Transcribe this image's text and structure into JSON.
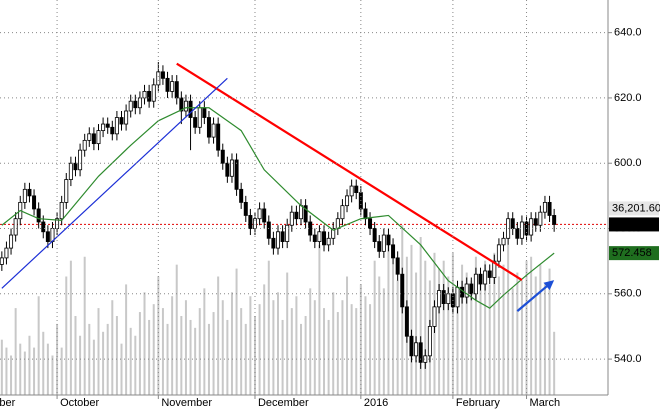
{
  "chart_data": {
    "type": "candlestick",
    "xlim": [
      -0.4,
      131.7
    ],
    "xticks": [
      {
        "value": -1.2,
        "label": "ber"
      },
      {
        "value": 12,
        "label": "October"
      },
      {
        "value": 34,
        "label": "November"
      },
      {
        "value": 55,
        "label": "December"
      },
      {
        "value": 78,
        "label": "2016"
      },
      {
        "value": 98,
        "label": "February"
      },
      {
        "value": 114,
        "label": "March"
      }
    ],
    "ylim": [
      529,
      650
    ],
    "yticks": [
      {
        "value": 540,
        "label": "540.0"
      },
      {
        "value": 560,
        "label": "560.0"
      },
      {
        "value": 580,
        "label": "580.0"
      },
      {
        "value": 600,
        "label": "600.0"
      },
      {
        "value": 620,
        "label": "620.0"
      },
      {
        "value": 640,
        "label": "640.0"
      }
    ],
    "grid": true,
    "up_color": "#ffffff",
    "down_color": "#000000",
    "candles": [
      [
        569,
        573,
        567,
        571
      ],
      [
        571,
        576,
        569,
        574
      ],
      [
        574,
        580,
        572,
        578
      ],
      [
        578,
        585,
        576,
        583
      ],
      [
        583,
        590,
        581,
        588
      ],
      [
        588,
        594,
        586,
        592
      ],
      [
        592,
        594,
        588,
        590
      ],
      [
        590,
        592,
        584,
        586
      ],
      [
        586,
        588,
        580,
        582
      ],
      [
        582,
        584,
        577,
        579
      ],
      [
        579,
        581,
        574,
        576
      ],
      [
        576,
        582,
        574,
        580
      ],
      [
        580,
        585,
        578,
        583
      ],
      [
        583,
        590,
        581,
        588
      ],
      [
        588,
        597,
        586,
        595
      ],
      [
        595,
        602,
        593,
        600
      ],
      [
        600,
        602,
        596,
        598
      ],
      [
        598,
        606,
        596,
        604
      ],
      [
        604,
        609,
        602,
        607
      ],
      [
        607,
        611,
        605,
        609
      ],
      [
        609,
        611,
        604,
        606
      ],
      [
        606,
        612,
        604,
        610
      ],
      [
        610,
        614,
        608,
        612
      ],
      [
        612,
        614,
        609,
        611
      ],
      [
        611,
        613,
        607,
        609
      ],
      [
        609,
        616,
        607,
        614
      ],
      [
        614,
        616,
        610,
        612
      ],
      [
        612,
        618,
        610,
        616
      ],
      [
        616,
        621,
        614,
        619
      ],
      [
        619,
        621,
        615,
        617
      ],
      [
        617,
        622,
        615,
        620
      ],
      [
        620,
        624,
        618,
        622
      ],
      [
        622,
        624,
        617,
        619
      ],
      [
        619,
        626,
        617,
        624
      ],
      [
        624,
        631,
        622,
        628
      ],
      [
        628,
        630,
        624,
        626
      ],
      [
        626,
        628,
        620,
        622
      ],
      [
        622,
        627,
        620,
        625
      ],
      [
        625,
        627,
        618,
        620
      ],
      [
        620,
        622,
        612,
        616
      ],
      [
        616,
        621,
        614,
        619
      ],
      [
        619,
        621,
        604,
        614
      ],
      [
        614,
        616,
        609,
        611
      ],
      [
        611,
        619,
        609,
        617
      ],
      [
        617,
        619,
        612,
        614
      ],
      [
        614,
        616,
        606,
        608
      ],
      [
        608,
        614,
        606,
        612
      ],
      [
        612,
        614,
        602,
        604
      ],
      [
        604,
        606,
        598,
        600
      ],
      [
        600,
        602,
        594,
        596
      ],
      [
        596,
        603,
        594,
        601
      ],
      [
        601,
        603,
        590,
        592
      ],
      [
        592,
        594,
        586,
        588
      ],
      [
        588,
        590,
        582,
        584
      ],
      [
        584,
        586,
        578,
        580
      ],
      [
        580,
        585,
        578,
        583
      ],
      [
        583,
        588,
        581,
        586
      ],
      [
        586,
        588,
        580,
        582
      ],
      [
        582,
        584,
        575,
        577
      ],
      [
        577,
        579,
        572,
        574
      ],
      [
        574,
        581,
        572,
        579
      ],
      [
        579,
        581,
        574,
        576
      ],
      [
        576,
        583,
        574,
        581
      ],
      [
        581,
        587,
        579,
        585
      ],
      [
        585,
        587,
        581,
        583
      ],
      [
        583,
        589,
        581,
        587
      ],
      [
        587,
        589,
        580,
        582
      ],
      [
        582,
        584,
        576,
        578
      ],
      [
        578,
        580,
        574,
        576
      ],
      [
        576,
        581,
        574,
        579
      ],
      [
        579,
        581,
        573,
        575
      ],
      [
        575,
        579,
        573,
        577
      ],
      [
        577,
        582,
        575,
        580
      ],
      [
        580,
        585,
        578,
        583
      ],
      [
        583,
        589,
        581,
        587
      ],
      [
        587,
        592,
        585,
        590
      ],
      [
        590,
        595,
        588,
        593
      ],
      [
        593,
        595,
        589,
        591
      ],
      [
        591,
        593,
        584,
        586
      ],
      [
        586,
        588,
        581,
        583
      ],
      [
        583,
        585,
        578,
        580
      ],
      [
        580,
        582,
        574,
        576
      ],
      [
        576,
        578,
        571,
        573
      ],
      [
        573,
        580,
        571,
        578
      ],
      [
        578,
        580,
        573,
        575
      ],
      [
        575,
        577,
        569,
        571
      ],
      [
        571,
        573,
        564,
        566
      ],
      [
        566,
        568,
        554,
        556
      ],
      [
        556,
        558,
        545,
        547
      ],
      [
        547,
        549,
        539,
        541
      ],
      [
        541,
        547,
        539,
        545
      ],
      [
        545,
        547,
        537,
        539
      ],
      [
        539,
        543,
        537,
        541
      ],
      [
        541,
        552,
        539,
        550
      ],
      [
        550,
        558,
        548,
        556
      ],
      [
        556,
        563,
        554,
        561
      ],
      [
        561,
        563,
        555,
        557
      ],
      [
        557,
        562,
        555,
        560
      ],
      [
        560,
        562,
        554,
        556
      ],
      [
        556,
        564,
        554,
        562
      ],
      [
        562,
        564,
        557,
        559
      ],
      [
        559,
        565,
        557,
        563
      ],
      [
        563,
        565,
        558,
        560
      ],
      [
        560,
        568,
        558,
        566
      ],
      [
        566,
        568,
        561,
        563
      ],
      [
        563,
        569,
        561,
        567
      ],
      [
        567,
        569,
        563,
        565
      ],
      [
        565,
        572,
        563,
        570
      ],
      [
        570,
        577,
        568,
        575
      ],
      [
        575,
        579,
        573,
        577
      ],
      [
        577,
        585,
        575,
        583
      ],
      [
        583,
        585,
        578,
        580
      ],
      [
        580,
        582,
        575,
        577
      ],
      [
        577,
        584,
        575,
        582
      ],
      [
        582,
        584,
        576,
        578
      ],
      [
        578,
        585,
        576,
        583
      ],
      [
        583,
        585,
        579,
        581
      ],
      [
        581,
        587,
        579,
        585
      ],
      [
        585,
        590,
        583,
        588
      ],
      [
        588,
        590,
        582,
        584
      ],
      [
        584,
        586,
        579,
        581.25
      ]
    ],
    "volume_lim": [
      0,
      100
    ],
    "volume_color": "#c8c8c8",
    "volume": [
      14,
      12,
      10,
      22,
      13,
      11,
      15,
      12,
      25,
      16,
      13,
      10,
      18,
      12,
      30,
      34,
      20,
      15,
      35,
      18,
      14,
      22,
      16,
      18,
      24,
      20,
      13,
      28,
      17,
      15,
      21,
      26,
      19,
      23,
      30,
      22,
      18,
      25,
      33,
      20,
      24,
      19,
      17,
      22,
      27,
      18,
      21,
      30,
      24,
      19,
      26,
      32,
      22,
      18,
      25,
      20,
      23,
      28,
      34,
      24,
      26,
      19,
      31,
      22,
      25,
      18,
      20,
      27,
      24,
      38,
      22,
      19,
      26,
      21,
      24,
      30,
      23,
      22,
      28,
      25,
      23,
      34,
      30,
      27,
      40,
      33,
      29,
      43,
      35,
      38,
      31,
      40,
      34,
      29,
      36,
      32,
      34,
      30,
      36,
      27,
      33,
      31,
      29,
      35,
      30,
      34,
      28,
      36,
      30,
      33,
      38,
      27,
      31,
      29,
      34,
      35,
      30,
      33,
      28,
      32,
      16
    ],
    "ma": {
      "name": "MA",
      "color": "#2e8b2e",
      "x": [
        0,
        4,
        8,
        13,
        21,
        28,
        34,
        40,
        45,
        52,
        57,
        65,
        72,
        78,
        84,
        91,
        97,
        103,
        106,
        109,
        114,
        120
      ],
      "values": [
        581,
        585.5,
        583,
        582.5,
        596,
        605.5,
        613,
        617,
        617,
        610,
        598,
        587,
        579.5,
        583,
        584,
        575,
        564,
        558,
        555.6,
        559.6,
        565.7,
        572.458
      ]
    },
    "indicator_label": "36,201.60",
    "trendlines": [
      {
        "color": "#ff0000",
        "x": [
          38,
          113
        ],
        "y": [
          630.5,
          564.2
        ]
      },
      {
        "color": "#1c2fd6",
        "x": [
          0,
          49
        ],
        "y": [
          561.7,
          626
        ]
      }
    ],
    "arrow": {
      "color": "#1c4fd6",
      "x": [
        112,
        120
      ],
      "y": [
        554.7,
        564.2
      ]
    }
  }
}
